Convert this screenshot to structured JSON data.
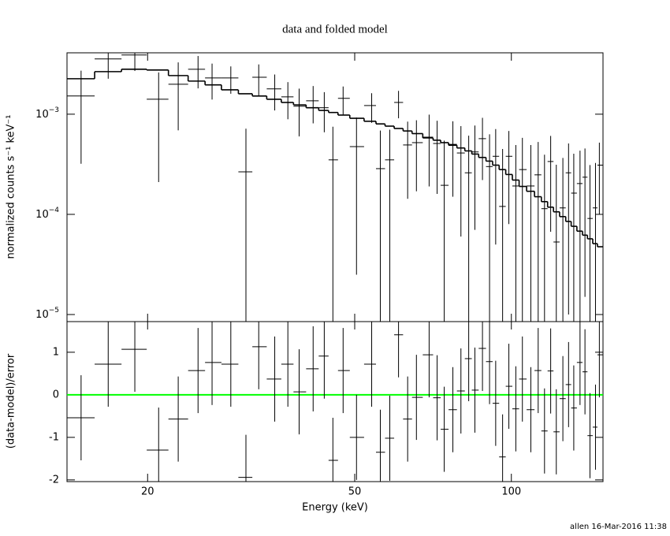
{
  "chart_data": [
    {
      "type": "errorbar",
      "title": "data and folded model",
      "ylabel": "normalized counts s⁻¹ keV⁻¹",
      "log_x": true,
      "log_y": true,
      "xlim": [
        14,
        150
      ],
      "ylim": [
        8.5e-06,
        0.0041
      ],
      "yticks": [
        {
          "value": 0.001,
          "label": "10",
          "exponent": "−3"
        },
        {
          "value": 0.0001,
          "label": "10",
          "exponent": "−4"
        },
        {
          "value": 1e-05,
          "label": "10",
          "exponent": "−5"
        }
      ],
      "color": "#000000",
      "x": [
        14.9,
        16.8,
        18.9,
        21.0,
        22.9,
        25.0,
        26.6,
        28.9,
        30.9,
        32.7,
        35.1,
        37.2,
        39.1,
        41.6,
        43.7,
        45.4,
        47.5,
        50.4,
        53.9,
        56.0,
        58.4,
        60.7,
        63.2,
        65.7,
        69.5,
        72.0,
        74.3,
        77.2,
        80.0,
        82.8,
        85.1,
        88.0,
        90.8,
        93.3,
        96.2,
        98.9,
        102,
        105,
        109,
        112.6,
        115.8,
        119,
        122,
        125.6,
        128.8,
        131.8,
        135.5,
        138.5,
        141.6,
        145.1,
        147.6
      ],
      "values": [
        0.00152,
        0.00356,
        0.0039,
        0.00141,
        0.00199,
        0.00281,
        0.0023,
        0.0023,
        0.000266,
        0.00234,
        0.00179,
        0.00149,
        0.0012,
        0.00136,
        0.00116,
        0.00035,
        0.00144,
        0.000475,
        0.00122,
        0.000286,
        0.00035,
        0.00131,
        0.000493,
        0.00052,
        0.00059,
        0.00051,
        0.000195,
        0.0005,
        0.00041,
        0.00026,
        0.00042,
        0.00057,
        0.0003,
        0.00038,
        0.00012,
        0.00038,
        0.000192,
        0.00028,
        0.000192,
        0.000248,
        0.000114,
        0.000337,
        5.3e-05,
        0.000116,
        0.00026,
        0.000163,
        0.000203,
        0.000235,
        9.1e-05,
        0.000116,
        0.00031
      ],
      "errors": [
        0.0012,
        0.0013,
        0.0012,
        0.0012,
        0.0013,
        0.001,
        0.0009,
        0.0007,
        0.00045,
        0.0008,
        0.0007,
        0.0006,
        0.0006,
        0.00055,
        0.0005,
        0.0004,
        0.00045,
        0.00045,
        0.0004,
        0.0004,
        0.00035,
        0.0004,
        0.00035,
        0.00035,
        0.0004,
        0.00035,
        0.00035,
        0.00035,
        0.00035,
        0.00035,
        0.00035,
        0.00035,
        0.00033,
        0.00033,
        0.00033,
        0.0003,
        0.0003,
        0.0003,
        0.0003,
        0.00028,
        0.00028,
        0.00027,
        0.00026,
        0.00025,
        0.00025,
        0.00024,
        0.00023,
        0.00022,
        0.00022,
        0.00021,
        0.00021
      ],
      "model": [
        0.00226,
        0.00266,
        0.00281,
        0.00276,
        0.00243,
        0.00214,
        0.00196,
        0.00175,
        0.0016,
        0.00152,
        0.00141,
        0.00131,
        0.00124,
        0.00116,
        0.00109,
        0.00104,
        0.00098,
        0.00091,
        0.00085,
        0.0008,
        0.00076,
        0.00072,
        0.00068,
        0.00064,
        0.00058,
        0.00055,
        0.00052,
        0.00049,
        0.00046,
        0.00043,
        0.0004,
        0.00037,
        0.00034,
        0.00031,
        0.00028,
        0.00025,
        0.00022,
        0.00019,
        0.00017,
        0.00015,
        0.000134,
        0.000118,
        0.000106,
        9.5e-05,
        8.5e-05,
        7.6e-05,
        6.8e-05,
        6.2e-05,
        5.7e-05,
        5.1e-05,
        4.75e-05
      ]
    },
    {
      "type": "errorbar",
      "xlabel": "Energy (keV)",
      "ylabel": "(data-model)/error",
      "log_x": true,
      "xlim": [
        14,
        150
      ],
      "ylim": [
        -2.04,
        1.72
      ],
      "xticks": [
        20,
        50,
        100
      ],
      "yticks": [
        -2,
        -1,
        0,
        1
      ],
      "color": "#000000",
      "zero_line": 0,
      "zero_color": "#00ff00",
      "error": 1,
      "x": [
        14.9,
        16.8,
        18.9,
        21.0,
        22.9,
        25.0,
        26.6,
        28.9,
        30.9,
        32.7,
        35.1,
        37.2,
        39.1,
        41.6,
        43.7,
        45.4,
        47.5,
        50.4,
        53.9,
        56.0,
        58.4,
        60.7,
        63.2,
        65.7,
        69.5,
        72.0,
        74.3,
        77.2,
        80.0,
        82.8,
        85.1,
        88.0,
        90.8,
        93.3,
        96.2,
        98.9,
        102,
        105,
        109,
        112.6,
        115.8,
        119,
        122,
        125.6,
        128.8,
        131.8,
        135.5,
        138.5,
        141.6,
        145.1,
        147.6
      ],
      "values": [
        -0.54,
        0.72,
        1.07,
        -1.3,
        -0.57,
        0.57,
        0.76,
        0.72,
        -1.94,
        1.13,
        0.37,
        0.72,
        0.07,
        0.61,
        0.91,
        -1.54,
        0.57,
        -1.0,
        0.72,
        -1.35,
        -1.02,
        1.41,
        -0.57,
        -0.06,
        0.94,
        -0.07,
        -0.81,
        -0.35,
        0.09,
        0.85,
        0.11,
        1.09,
        0.78,
        -0.2,
        -1.46,
        0.2,
        -0.33,
        0.37,
        -0.35,
        0.57,
        -0.85,
        0.56,
        -0.87,
        -0.09,
        0.24,
        -0.31,
        0.76,
        0.54,
        -0.96,
        -0.76,
        0.94
      ]
    }
  ],
  "footer": "allen 16-Mar-2016 11:38"
}
